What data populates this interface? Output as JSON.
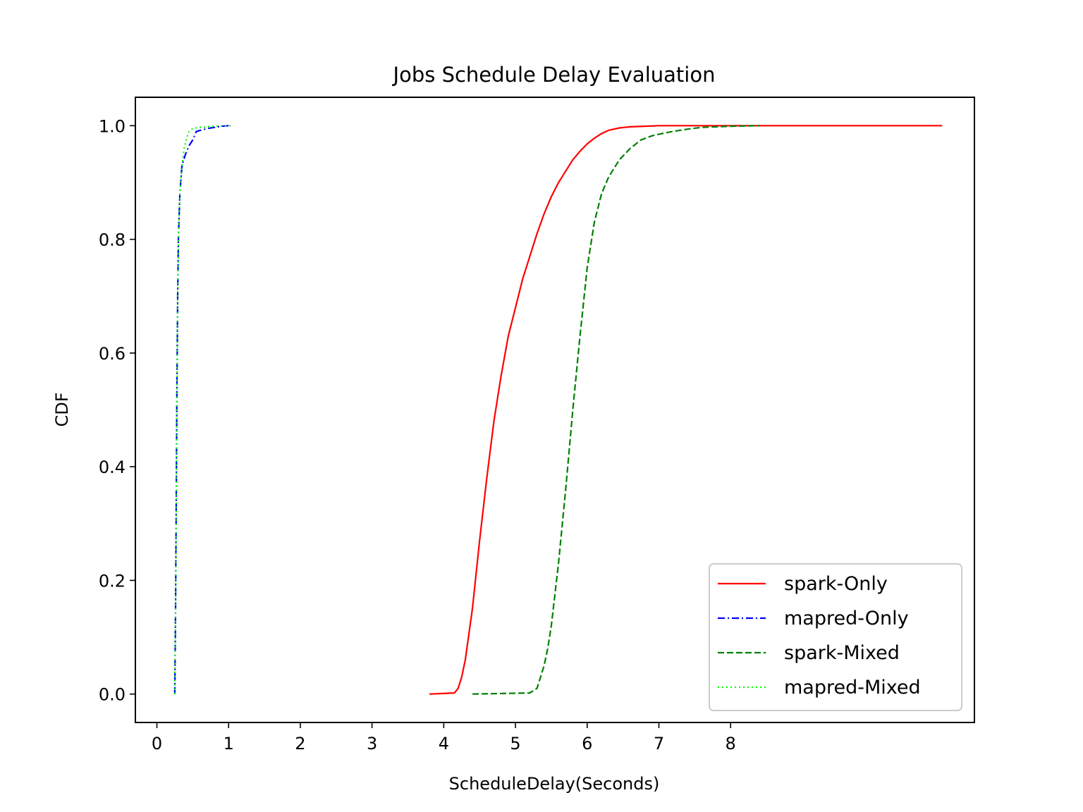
{
  "chart_data": {
    "type": "line",
    "title": "Jobs Schedule Delay Evaluation",
    "xlabel": "ScheduleDelay(Seconds)",
    "ylabel": "CDF",
    "xlim": [
      -0.3,
      11.4
    ],
    "ylim": [
      -0.05,
      1.05
    ],
    "xticks": [
      0,
      1,
      2,
      3,
      4,
      5,
      6,
      7,
      8
    ],
    "yticks": [
      0.0,
      0.2,
      0.4,
      0.6,
      0.8,
      1.0
    ],
    "xtick_labels": [
      "0",
      "1",
      "2",
      "3",
      "4",
      "5",
      "6",
      "7",
      "8"
    ],
    "ytick_labels": [
      "0.0",
      "0.2",
      "0.4",
      "0.6",
      "0.8",
      "1.0"
    ],
    "grid": false,
    "legend_position": "lower-right",
    "series": [
      {
        "name": "spark-Only",
        "color": "#ff0000",
        "style": "solid",
        "x": [
          3.8,
          4.15,
          4.2,
          4.25,
          4.3,
          4.4,
          4.5,
          4.6,
          4.7,
          4.8,
          4.9,
          5.0,
          5.1,
          5.2,
          5.3,
          5.4,
          5.5,
          5.6,
          5.7,
          5.8,
          5.9,
          6.0,
          6.1,
          6.2,
          6.3,
          6.45,
          6.6,
          6.8,
          7.0,
          7.5,
          8.0,
          9.0,
          10.0,
          10.95
        ],
        "y": [
          0.0,
          0.002,
          0.01,
          0.03,
          0.06,
          0.15,
          0.27,
          0.38,
          0.48,
          0.56,
          0.63,
          0.68,
          0.73,
          0.77,
          0.81,
          0.845,
          0.875,
          0.9,
          0.92,
          0.94,
          0.955,
          0.968,
          0.978,
          0.986,
          0.992,
          0.996,
          0.998,
          0.999,
          1.0,
          1.0,
          1.0,
          1.0,
          1.0,
          1.0
        ]
      },
      {
        "name": "mapred-Only",
        "color": "#0000ff",
        "style": "dashdot",
        "x": [
          0.25,
          0.26,
          0.27,
          0.28,
          0.29,
          0.3,
          0.32,
          0.35,
          0.4,
          0.45,
          0.5,
          0.55,
          0.7,
          0.9,
          1.0
        ],
        "y": [
          0.0,
          0.15,
          0.35,
          0.55,
          0.7,
          0.8,
          0.88,
          0.93,
          0.95,
          0.965,
          0.975,
          0.99,
          0.995,
          0.999,
          1.0
        ]
      },
      {
        "name": "spark-Mixed",
        "color": "#008000",
        "style": "dashed",
        "x": [
          4.4,
          5.2,
          5.3,
          5.35,
          5.4,
          5.45,
          5.5,
          5.6,
          5.7,
          5.8,
          5.9,
          6.0,
          6.1,
          6.2,
          6.3,
          6.45,
          6.6,
          6.75,
          6.9,
          7.0,
          7.2,
          7.4,
          7.6,
          8.0,
          8.4
        ],
        "y": [
          0.0,
          0.002,
          0.01,
          0.03,
          0.05,
          0.08,
          0.12,
          0.23,
          0.36,
          0.5,
          0.63,
          0.75,
          0.83,
          0.88,
          0.91,
          0.94,
          0.96,
          0.975,
          0.982,
          0.985,
          0.99,
          0.994,
          0.997,
          0.999,
          1.0
        ]
      },
      {
        "name": "mapred-Mixed",
        "color": "#00ff00",
        "style": "dotted",
        "x": [
          0.25,
          0.26,
          0.27,
          0.28,
          0.29,
          0.3,
          0.32,
          0.35,
          0.38,
          0.42,
          0.45,
          0.5,
          0.6,
          0.8,
          1.05
        ],
        "y": [
          0.0,
          0.15,
          0.35,
          0.55,
          0.7,
          0.8,
          0.88,
          0.93,
          0.96,
          0.98,
          0.99,
          0.995,
          0.997,
          0.999,
          1.0
        ]
      }
    ]
  }
}
